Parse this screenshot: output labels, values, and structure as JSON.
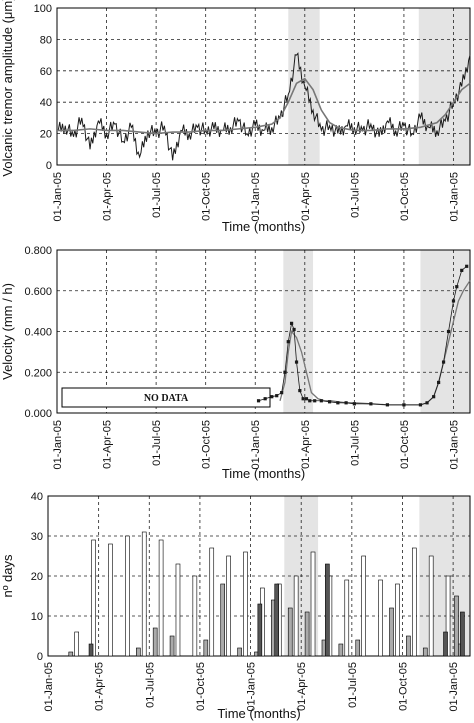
{
  "colors": {
    "shade": "#e4e4e4",
    "grid": "#222222",
    "line_dark": "#1a1a1a",
    "line_mid": "#777777",
    "bar_white": "#ffffff",
    "bar_gray": "#aaaaaa",
    "bar_dark": "#555555"
  },
  "chart_data": [
    {
      "id": "tremor",
      "type": "line",
      "xlabel": "Time (months)",
      "ylabel": "Volcanic tremor amplitude (μm)",
      "ylim": [
        0,
        100
      ],
      "yticks": [
        "0",
        "20",
        "40",
        "60",
        "80",
        "100"
      ],
      "xticks": [
        "01-Jan-05",
        "01-Apr-05",
        "01-Jul-05",
        "01-Oct-05",
        "01-Jan-05",
        "01-Apr-05",
        "01-Jul-05",
        "01-Oct-05",
        "01-Jan-05"
      ],
      "grid": true,
      "shaded_periods_months": [
        [
          14.0,
          15.9
        ],
        [
          21.9,
          25.0
        ]
      ],
      "series": [
        {
          "values_sampled_months": [
            0,
            0.5,
            1,
            1.5,
            2,
            2.5,
            3,
            3.5,
            4,
            4.5,
            5,
            5.5,
            6,
            6.5,
            7,
            7.5,
            8,
            8.5,
            9,
            9.5,
            10,
            10.5,
            11,
            11.5,
            12,
            12.5,
            13,
            13.5,
            14,
            14.5,
            15,
            15.5,
            16,
            16.5,
            17,
            17.5,
            18,
            18.5,
            19,
            19.5,
            20,
            20.5,
            21,
            21.5,
            22,
            22.5,
            23,
            23.5,
            24,
            24.5,
            25
          ],
          "values": [
            22,
            25,
            18,
            30,
            10,
            28,
            20,
            26,
            15,
            24,
            5,
            22,
            20,
            25,
            3,
            22,
            20,
            24,
            22,
            23,
            22,
            24,
            28,
            20,
            25,
            22,
            24,
            30,
            45,
            70,
            50,
            35,
            22,
            25,
            20,
            25,
            24,
            22,
            26,
            18,
            28,
            22,
            25,
            20,
            30,
            24,
            22,
            28,
            40,
            50,
            70
          ]
        },
        {
          "values_sampled_months": [
            0,
            1,
            2,
            3,
            4,
            5,
            6,
            7,
            8,
            9,
            10,
            11,
            12,
            13,
            13.5,
            14,
            14.5,
            15,
            15.5,
            16,
            16.5,
            17,
            18,
            19,
            20,
            21,
            22,
            23,
            23.5,
            24,
            24.5,
            25
          ],
          "values": [
            22,
            22,
            23,
            22,
            22,
            21,
            20,
            21,
            21,
            22,
            22,
            23,
            24,
            26,
            30,
            40,
            52,
            55,
            48,
            35,
            27,
            24,
            22,
            22,
            23,
            23,
            24,
            27,
            32,
            40,
            48,
            52
          ]
        }
      ]
    },
    {
      "id": "velocity",
      "type": "line",
      "xlabel": "Time (months)",
      "ylabel": "Velocity (mm / h)",
      "ylim": [
        0,
        0.8
      ],
      "yticks": [
        "0.000",
        "0.200",
        "0.400",
        "0.600",
        "0.800"
      ],
      "xticks": [
        "01-Jan-05",
        "01-Apr-05",
        "01-Jul-05",
        "01-Oct-05",
        "01-Jan-05",
        "01-Apr-05",
        "01-Jul-05",
        "01-Oct-05",
        "01-Jan-05"
      ],
      "grid": true,
      "annotation": "NO DATA",
      "shaded_periods_months": [
        [
          13.7,
          15.5
        ],
        [
          22.0,
          25.0
        ]
      ],
      "series": [
        {
          "x_months": [
            12.2,
            12.6,
            13.0,
            13.3,
            13.6,
            13.8,
            14.0,
            14.2,
            14.35,
            14.5,
            14.7,
            14.9,
            15.1,
            15.3,
            15.6,
            16.0,
            16.5,
            17.0,
            17.5,
            18.0,
            19.0,
            20.0,
            21.0,
            22.0,
            22.4,
            22.8,
            23.1,
            23.4,
            23.7,
            24.0,
            24.2,
            24.5,
            24.8
          ],
          "values": [
            0.06,
            0.07,
            0.08,
            0.085,
            0.1,
            0.2,
            0.35,
            0.44,
            0.41,
            0.25,
            0.11,
            0.07,
            0.07,
            0.06,
            0.06,
            0.06,
            0.055,
            0.05,
            0.05,
            0.045,
            0.045,
            0.04,
            0.04,
            0.04,
            0.05,
            0.08,
            0.15,
            0.25,
            0.4,
            0.55,
            0.62,
            0.7,
            0.72
          ]
        },
        {
          "x_months": [
            13.5,
            13.8,
            14.0,
            14.2,
            14.5,
            14.8,
            15.1,
            15.4,
            15.8,
            16.2,
            16.6,
            17.0,
            17.5,
            18.0,
            19.0,
            20.0,
            21.0,
            22.0,
            22.4,
            22.8,
            23.1,
            23.4,
            23.7,
            24.0,
            24.3,
            24.6,
            25.0
          ],
          "values": [
            0.06,
            0.15,
            0.3,
            0.4,
            0.37,
            0.3,
            0.2,
            0.1,
            0.07,
            0.06,
            0.06,
            0.055,
            0.05,
            0.05,
            0.045,
            0.04,
            0.04,
            0.04,
            0.05,
            0.08,
            0.15,
            0.25,
            0.35,
            0.45,
            0.55,
            0.6,
            0.65
          ]
        }
      ]
    },
    {
      "id": "days",
      "type": "bar",
      "xlabel": "Time (months)",
      "ylabel": "nº days",
      "ylim": [
        0,
        40
      ],
      "yticks": [
        "0",
        "10",
        "20",
        "30",
        "40"
      ],
      "xticks": [
        "01-Jan-05",
        "01-Apr-05",
        "01-Jul-05",
        "01-Oct-05",
        "01-Jan-05",
        "01-Apr-05",
        "01-Jul-05",
        "01-Oct-05",
        "01-Jan-05"
      ],
      "grid": true,
      "shaded_periods_months": [
        [
          14.0,
          16.0
        ],
        [
          22.0,
          25.0
        ]
      ],
      "series": [
        {
          "values": [
            6,
            29,
            28,
            30,
            31,
            29,
            23,
            20,
            27,
            25,
            26,
            17,
            18,
            20,
            26,
            20,
            19,
            25,
            19,
            18,
            27,
            25,
            20
          ]
        },
        {
          "values": [
            0,
            1,
            0,
            0,
            0,
            2,
            7,
            5,
            0,
            4,
            18,
            2,
            1,
            14,
            12,
            11,
            4,
            3,
            4,
            0,
            12,
            5,
            2,
            0,
            3
          ]
        },
        {
          "values": [
            0,
            0,
            3,
            0,
            0,
            0,
            0,
            0,
            0,
            0,
            0,
            0,
            13,
            18,
            0,
            0,
            23,
            0,
            0,
            0,
            0,
            0,
            0,
            6,
            11
          ]
        },
        {
          "values": [
            0,
            0,
            0,
            0,
            0,
            0,
            0,
            0,
            0,
            0,
            0,
            0,
            0,
            0,
            0,
            0,
            0,
            0,
            0,
            0,
            0,
            0,
            15
          ]
        }
      ]
    }
  ]
}
